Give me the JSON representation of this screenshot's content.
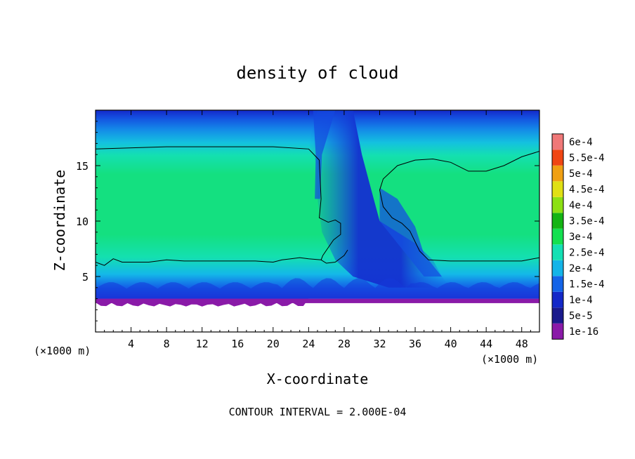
{
  "chart_data": {
    "type": "heatmap",
    "title": "density of cloud",
    "xlabel": "X-coordinate",
    "ylabel": "Z-coordinate",
    "x_unit": "(×1000 m)",
    "y_unit": "(×1000 m)",
    "xlim": [
      0,
      50
    ],
    "ylim": [
      0,
      20
    ],
    "x_ticks": [
      4,
      8,
      12,
      16,
      20,
      24,
      28,
      32,
      36,
      40,
      44,
      48
    ],
    "y_ticks": [
      5,
      10,
      15
    ],
    "footer": "CONTOUR INTERVAL = 2.000E-04",
    "colorbar": {
      "labels": [
        "1e-16",
        "5e-5",
        "1e-4",
        "1.5e-4",
        "2e-4",
        "2.5e-4",
        "3e-4",
        "3.5e-4",
        "4e-4",
        "4.5e-4",
        "5e-4",
        "5.5e-4",
        "6e-4"
      ],
      "colors": [
        "#8a1aa8",
        "#1a1a8c",
        "#1428c8",
        "#1464e8",
        "#14b4e8",
        "#14e0b4",
        "#14e050",
        "#14b414",
        "#8ce014",
        "#e0e014",
        "#f0a014",
        "#f04614",
        "#f07878"
      ]
    },
    "field_description": {
      "cloud_base_z": 3,
      "cloud_top_z": 16.5,
      "core_value": 0.00025,
      "clear_channel_x": [
        26,
        38
      ]
    },
    "contour_level": 0.0002,
    "contour_upper": [
      [
        0,
        16.5
      ],
      [
        8,
        16.7
      ],
      [
        16,
        16.7
      ],
      [
        20,
        16.7
      ],
      [
        24,
        16.5
      ],
      [
        25.2,
        15.5
      ],
      [
        25.4,
        12
      ],
      [
        25.2,
        10.3
      ],
      [
        26.2,
        9.9
      ],
      [
        27,
        10.1
      ],
      [
        27.6,
        9.8
      ],
      [
        27.6,
        8.8
      ],
      [
        26.8,
        8.3
      ],
      [
        26.2,
        7.6
      ],
      [
        25.6,
        6.9
      ],
      [
        25.4,
        6.5
      ],
      [
        26,
        6.2
      ],
      [
        27,
        6.3
      ],
      [
        28,
        6.9
      ],
      [
        28.4,
        7.4
      ]
    ],
    "contour_right": [
      [
        50,
        16.3
      ],
      [
        48,
        15.8
      ],
      [
        46,
        15
      ],
      [
        44,
        14.5
      ],
      [
        42,
        14.5
      ],
      [
        40,
        15.3
      ],
      [
        38,
        15.6
      ],
      [
        36,
        15.5
      ],
      [
        34,
        15
      ],
      [
        32.4,
        13.8
      ],
      [
        32,
        12.8
      ],
      [
        32.4,
        11.3
      ],
      [
        33.4,
        10.3
      ],
      [
        34.5,
        9.8
      ],
      [
        35.4,
        9.1
      ],
      [
        36.5,
        7.3
      ],
      [
        37.5,
        6.5
      ],
      [
        40,
        6.4
      ],
      [
        44,
        6.4
      ],
      [
        48,
        6.4
      ],
      [
        50,
        6.7
      ]
    ],
    "contour_lower": [
      [
        0,
        6.3
      ],
      [
        1,
        6
      ],
      [
        2,
        6.6
      ],
      [
        3,
        6.3
      ],
      [
        4,
        6.3
      ],
      [
        6,
        6.3
      ],
      [
        8,
        6.5
      ],
      [
        10,
        6.4
      ],
      [
        14,
        6.4
      ],
      [
        18,
        6.4
      ],
      [
        20,
        6.3
      ],
      [
        21,
        6.5
      ],
      [
        22,
        6.6
      ],
      [
        23,
        6.7
      ],
      [
        24,
        6.6
      ],
      [
        25.4,
        6.5
      ]
    ]
  }
}
